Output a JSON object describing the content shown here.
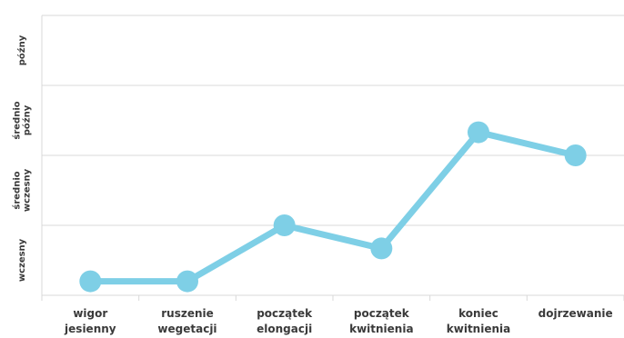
{
  "chart_data": {
    "type": "line",
    "title": "",
    "xlabel": "",
    "ylabel": "",
    "categories": [
      [
        "wigor",
        "jesienny"
      ],
      [
        "ruszenie",
        "wegetacji"
      ],
      [
        "początek",
        "elongacji"
      ],
      [
        "początek",
        "kwitnienia"
      ],
      [
        "koniec",
        "kwitnienia"
      ],
      [
        "dojrzewanie"
      ]
    ],
    "y_levels": [
      [
        "wczesny"
      ],
      [
        "średnio",
        "wczesny"
      ],
      [
        "średnio",
        "późny"
      ],
      [
        "późny"
      ]
    ],
    "ylim": [
      0.5,
      4.5
    ],
    "series": [
      {
        "values": [
          0.7,
          0.7,
          1.5,
          1.17,
          2.83,
          2.5
        ]
      }
    ],
    "grid": true,
    "line_color": "#7ecfe6",
    "marker_color": "#7ecfe6",
    "grid_color": "#d9d9d9",
    "label_color": "#3a3a3a"
  }
}
